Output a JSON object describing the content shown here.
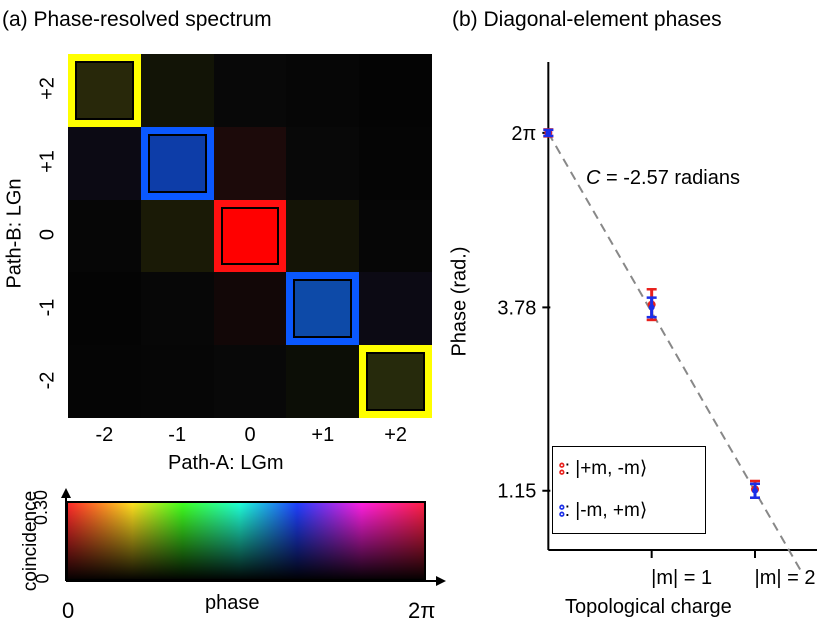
{
  "chart_data": [
    {
      "type": "heatmap",
      "title": "(a) Phase-resolved spectrum",
      "xlabel": "Path-A: LGm",
      "ylabel": "Path-B: LGn",
      "x_categories": [
        "-2",
        "-1",
        "0",
        "+1",
        "+2"
      ],
      "y_categories": [
        "+2",
        "+1",
        "0",
        "-1",
        "-2"
      ],
      "cells": [
        [
          "#28280a",
          "#121406",
          "#080808",
          "#060606",
          "#040404"
        ],
        [
          "#0c0a14",
          "#0d3da8",
          "#1c0a0a",
          "#080808",
          "#050505"
        ],
        [
          "#060606",
          "#1a1a06",
          "#ff0000",
          "#141406",
          "#060606"
        ],
        [
          "#040404",
          "#070707",
          "#120707",
          "#0d4aa8",
          "#0c0a14"
        ],
        [
          "#050505",
          "#060606",
          "#080808",
          "#0c0e06",
          "#262a0c"
        ]
      ],
      "highlight_colors": {
        "+2": "#ffff00",
        "+1": "#0a58ff",
        "0": "#ff1010",
        "-1": "#0a58ff",
        "-2": "#ffff00"
      },
      "colorbar": {
        "ylabel": "coincidence",
        "y_ticks": [
          "0",
          "0.30"
        ],
        "xlabel": "phase",
        "x_ticks": [
          "0",
          "2π"
        ]
      }
    },
    {
      "type": "scatter",
      "title": "(b) Diagonal-element phases",
      "xlabel": "Topological charge",
      "ylabel": "Phase (rad.)",
      "x_ticks": [
        {
          "x": 1,
          "label": "|m| = 1"
        },
        {
          "x": 2,
          "label": "|m| = 2"
        }
      ],
      "y_ticks": [
        {
          "y": 6.283,
          "label": "2π"
        },
        {
          "y": 3.78,
          "label": "3.78"
        },
        {
          "y": 1.15,
          "label": "1.15"
        }
      ],
      "xlim": [
        -0.1,
        2.6
      ],
      "ylim": [
        0.3,
        7.3
      ],
      "series": [
        {
          "name": "|+m, -m⟩",
          "color": "#e8201c",
          "points": [
            {
              "x": 0,
              "y": 6.283,
              "err": 0.05
            },
            {
              "x": 1,
              "y": 3.82,
              "err": 0.22
            },
            {
              "x": 2,
              "y": 1.17,
              "err": 0.12
            }
          ]
        },
        {
          "name": "|-m, +m⟩",
          "color": "#1a2ee8",
          "points": [
            {
              "x": 0,
              "y": 6.283,
              "err": 0.04
            },
            {
              "x": 1,
              "y": 3.78,
              "err": 0.14
            },
            {
              "x": 2,
              "y": 1.15,
              "err": 0.1
            }
          ]
        }
      ],
      "fit_line": {
        "intercept": 6.283,
        "slope": -2.57,
        "x_range": [
          0,
          2.45
        ]
      },
      "annotation": {
        "var": "C",
        "text": " = -2.57 radians"
      }
    }
  ]
}
